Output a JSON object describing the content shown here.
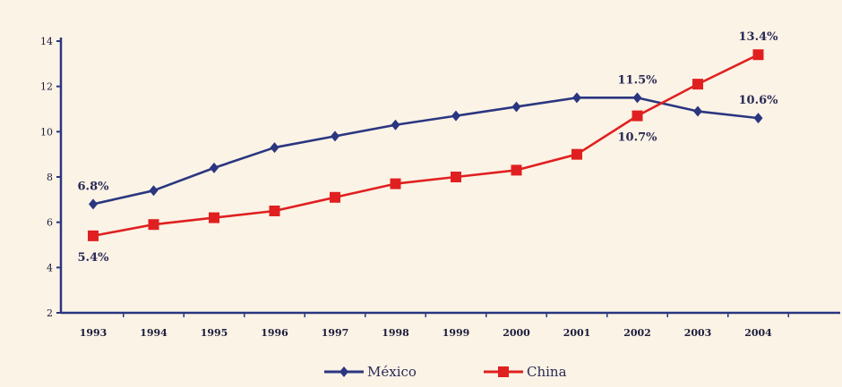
{
  "chart_data": {
    "type": "line",
    "categories": [
      "1993",
      "1994",
      "1995",
      "1996",
      "1997",
      "1998",
      "1999",
      "2000",
      "2001",
      "2002",
      "2003",
      "2004"
    ],
    "series": [
      {
        "name": "México",
        "color": "#2b3680",
        "marker": "diamond",
        "values": [
          6.8,
          7.4,
          8.4,
          9.3,
          9.8,
          10.3,
          10.7,
          11.1,
          11.5,
          11.5,
          10.9,
          10.6
        ]
      },
      {
        "name": "China",
        "color": "#e02020",
        "marker": "square",
        "values": [
          5.4,
          5.9,
          6.2,
          6.5,
          7.1,
          7.7,
          8.0,
          8.3,
          9.0,
          10.7,
          12.1,
          13.4
        ]
      }
    ],
    "ylim": [
      2,
      14
    ],
    "yticks": [
      2,
      4,
      6,
      8,
      10,
      12,
      14
    ],
    "grid": false,
    "legend": "bottom-center",
    "annotations": [
      {
        "series": 0,
        "index": 0,
        "text": "6.8%",
        "pos": "above"
      },
      {
        "series": 1,
        "index": 0,
        "text": "5.4%",
        "pos": "below"
      },
      {
        "series": 0,
        "index": 9,
        "text": "11.5%",
        "pos": "above"
      },
      {
        "series": 1,
        "index": 9,
        "text": "10.7%",
        "pos": "below"
      },
      {
        "series": 1,
        "index": 11,
        "text": "13.4%",
        "pos": "above"
      },
      {
        "series": 0,
        "index": 11,
        "text": "10.6%",
        "pos": "above"
      }
    ]
  }
}
